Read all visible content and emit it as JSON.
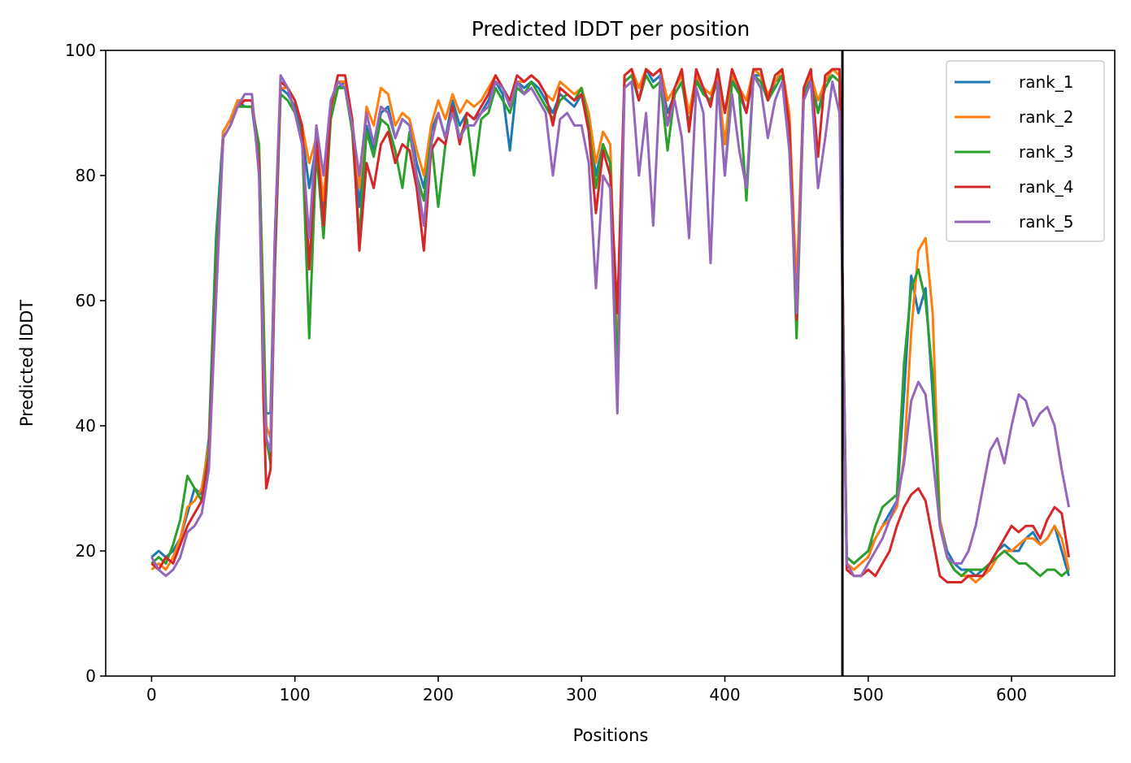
{
  "chart_data": {
    "type": "line",
    "title": "Predicted lDDT per position",
    "xlabel": "Positions",
    "ylabel": "Predicted lDDT",
    "xlim": [
      -32,
      672
    ],
    "ylim": [
      0,
      100
    ],
    "xticks": [
      0,
      100,
      200,
      300,
      400,
      500,
      600
    ],
    "yticks": [
      0,
      20,
      40,
      60,
      80,
      100
    ],
    "grid": false,
    "legend_position": "top-right",
    "vertical_line_x": 482,
    "x": [
      0,
      5,
      10,
      15,
      20,
      25,
      30,
      35,
      40,
      45,
      50,
      55,
      60,
      65,
      70,
      75,
      78,
      80,
      83,
      86,
      90,
      95,
      100,
      105,
      110,
      115,
      120,
      125,
      130,
      135,
      140,
      145,
      150,
      155,
      160,
      165,
      170,
      175,
      180,
      185,
      190,
      195,
      200,
      205,
      210,
      215,
      220,
      225,
      230,
      235,
      240,
      245,
      250,
      255,
      260,
      265,
      270,
      275,
      280,
      285,
      290,
      295,
      300,
      305,
      310,
      315,
      320,
      325,
      330,
      335,
      340,
      345,
      350,
      355,
      360,
      365,
      370,
      375,
      380,
      385,
      390,
      395,
      400,
      405,
      410,
      415,
      420,
      425,
      430,
      435,
      440,
      445,
      450,
      455,
      460,
      465,
      470,
      475,
      480,
      485,
      490,
      495,
      500,
      505,
      510,
      515,
      520,
      525,
      530,
      535,
      540,
      545,
      550,
      555,
      560,
      565,
      570,
      575,
      580,
      585,
      590,
      595,
      600,
      605,
      610,
      615,
      620,
      625,
      630,
      635,
      640
    ],
    "series": [
      {
        "name": "rank_1",
        "color": "#1f77b4",
        "values": [
          19,
          20,
          19,
          20,
          22,
          26,
          30,
          29,
          38,
          70,
          87,
          89,
          92,
          91,
          91,
          82,
          55,
          42,
          42,
          70,
          94,
          93,
          91,
          87,
          78,
          85,
          75,
          90,
          94,
          95,
          88,
          75,
          88,
          84,
          90,
          91,
          86,
          89,
          88,
          82,
          78,
          87,
          90,
          86,
          92,
          88,
          90,
          89,
          90,
          92,
          95,
          93,
          84,
          95,
          94,
          95,
          94,
          92,
          90,
          93,
          92,
          91,
          93,
          88,
          80,
          85,
          82,
          46,
          95,
          96,
          92,
          97,
          95,
          96,
          90,
          93,
          95,
          88,
          96,
          93,
          92,
          96,
          90,
          96,
          93,
          90,
          96,
          96,
          92,
          95,
          96,
          88,
          58,
          93,
          96,
          90,
          95,
          96,
          95,
          19,
          18,
          19,
          20,
          22,
          24,
          26,
          28,
          45,
          64,
          58,
          62,
          45,
          25,
          20,
          18,
          17,
          17,
          16,
          17,
          18,
          20,
          21,
          20,
          20,
          22,
          23,
          21,
          22,
          24,
          20,
          16
        ]
      },
      {
        "name": "rank_2",
        "color": "#ff7f0e",
        "values": [
          17,
          18,
          17,
          19,
          22,
          27,
          28,
          30,
          37,
          65,
          87,
          89,
          92,
          92,
          92,
          84,
          60,
          40,
          38,
          70,
          94,
          94,
          92,
          88,
          82,
          86,
          76,
          90,
          95,
          95,
          89,
          78,
          91,
          88,
          94,
          93,
          88,
          90,
          89,
          84,
          80,
          88,
          92,
          89,
          93,
          90,
          92,
          91,
          92,
          94,
          96,
          94,
          92,
          95,
          95,
          96,
          95,
          93,
          92,
          95,
          94,
          93,
          94,
          90,
          82,
          87,
          85,
          50,
          96,
          97,
          94,
          97,
          96,
          97,
          92,
          94,
          96,
          90,
          96,
          94,
          93,
          96,
          85,
          96,
          94,
          92,
          97,
          96,
          93,
          95,
          97,
          90,
          62,
          94,
          96,
          92,
          95,
          97,
          96,
          18,
          17,
          18,
          19,
          22,
          24,
          25,
          27,
          35,
          55,
          68,
          70,
          58,
          25,
          19,
          17,
          16,
          16,
          15,
          16,
          17,
          19,
          20,
          20,
          21,
          22,
          22,
          21,
          22,
          24,
          22,
          17
        ]
      },
      {
        "name": "rank_3",
        "color": "#2ca02c",
        "values": [
          18,
          19,
          18,
          21,
          25,
          32,
          30,
          28,
          36,
          68,
          86,
          88,
          91,
          91,
          91,
          85,
          58,
          38,
          34,
          65,
          93,
          92,
          90,
          86,
          54,
          84,
          70,
          89,
          94,
          94,
          87,
          70,
          87,
          83,
          89,
          88,
          84,
          78,
          87,
          80,
          76,
          86,
          75,
          85,
          91,
          86,
          89,
          80,
          89,
          90,
          94,
          92,
          90,
          94,
          93,
          95,
          93,
          91,
          89,
          92,
          93,
          92,
          94,
          88,
          78,
          85,
          82,
          48,
          95,
          96,
          92,
          96,
          94,
          95,
          84,
          93,
          95,
          88,
          95,
          93,
          92,
          95,
          80,
          95,
          93,
          76,
          96,
          95,
          92,
          94,
          96,
          88,
          54,
          93,
          95,
          90,
          94,
          96,
          95,
          19,
          18,
          19,
          20,
          24,
          27,
          28,
          29,
          50,
          62,
          65,
          60,
          48,
          24,
          19,
          17,
          16,
          17,
          17,
          17,
          18,
          19,
          20,
          19,
          18,
          18,
          17,
          16,
          17,
          17,
          16,
          17
        ]
      },
      {
        "name": "rank_4",
        "color": "#d62728",
        "values": [
          18,
          17,
          19,
          18,
          21,
          24,
          26,
          28,
          35,
          62,
          86,
          88,
          91,
          92,
          92,
          82,
          45,
          30,
          33,
          66,
          95,
          94,
          92,
          88,
          65,
          86,
          72,
          91,
          96,
          96,
          89,
          68,
          82,
          78,
          85,
          87,
          82,
          85,
          84,
          78,
          68,
          84,
          86,
          85,
          91,
          85,
          90,
          89,
          91,
          93,
          96,
          94,
          92,
          96,
          95,
          96,
          95,
          93,
          88,
          94,
          93,
          92,
          93,
          87,
          74,
          84,
          80,
          58,
          96,
          97,
          92,
          97,
          96,
          97,
          88,
          94,
          97,
          87,
          97,
          94,
          91,
          97,
          90,
          97,
          94,
          90,
          97,
          97,
          92,
          96,
          97,
          88,
          57,
          94,
          97,
          83,
          96,
          97,
          97,
          17,
          16,
          16,
          17,
          16,
          18,
          20,
          24,
          27,
          29,
          30,
          28,
          22,
          16,
          15,
          15,
          15,
          16,
          16,
          16,
          18,
          20,
          22,
          24,
          23,
          24,
          24,
          22,
          25,
          27,
          26,
          19
        ]
      },
      {
        "name": "rank_5",
        "color": "#9467bd",
        "values": [
          19,
          17,
          16,
          17,
          19,
          23,
          24,
          26,
          33,
          60,
          86,
          88,
          91,
          93,
          93,
          80,
          50,
          38,
          36,
          70,
          96,
          94,
          90,
          85,
          70,
          88,
          80,
          92,
          95,
          94,
          88,
          80,
          90,
          85,
          91,
          90,
          86,
          89,
          88,
          80,
          72,
          85,
          90,
          86,
          90,
          86,
          88,
          88,
          90,
          91,
          95,
          94,
          91,
          95,
          93,
          94,
          92,
          90,
          80,
          89,
          90,
          88,
          88,
          82,
          62,
          80,
          78,
          42,
          94,
          95,
          80,
          90,
          72,
          96,
          88,
          92,
          86,
          70,
          94,
          90,
          66,
          95,
          80,
          93,
          84,
          78,
          96,
          94,
          86,
          92,
          95,
          84,
          58,
          92,
          95,
          78,
          86,
          95,
          90,
          18,
          16,
          16,
          18,
          20,
          22,
          25,
          28,
          34,
          44,
          47,
          45,
          35,
          24,
          19,
          18,
          18,
          20,
          24,
          30,
          36,
          38,
          34,
          40,
          45,
          44,
          40,
          42,
          43,
          40,
          33,
          27
        ]
      }
    ]
  }
}
